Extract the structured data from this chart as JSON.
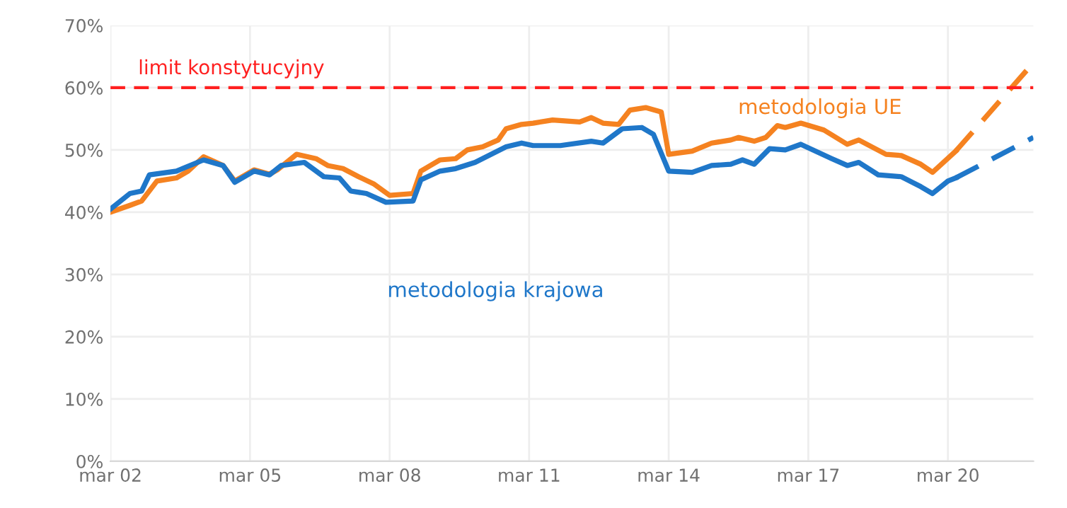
{
  "chart_data": {
    "type": "line",
    "xlim": [
      "2002-03",
      "2022-01"
    ],
    "ylim": [
      0,
      70
    ],
    "xticks": [
      {
        "value": "2002-03",
        "label": "mar 02"
      },
      {
        "value": "2005-03",
        "label": "mar 05"
      },
      {
        "value": "2008-03",
        "label": "mar 08"
      },
      {
        "value": "2011-03",
        "label": "mar 11"
      },
      {
        "value": "2014-03",
        "label": "mar 14"
      },
      {
        "value": "2017-03",
        "label": "mar 17"
      },
      {
        "value": "2020-03",
        "label": "mar 20"
      }
    ],
    "yticks": [
      {
        "value": 0,
        "label": "0%"
      },
      {
        "value": 10,
        "label": "10%"
      },
      {
        "value": 20,
        "label": "20%"
      },
      {
        "value": 30,
        "label": "30%"
      },
      {
        "value": 40,
        "label": "40%"
      },
      {
        "value": 50,
        "label": "50%"
      },
      {
        "value": 60,
        "label": "60%"
      },
      {
        "value": 70,
        "label": "70%"
      }
    ],
    "grid": true,
    "series": [
      {
        "name": "metodologia UE",
        "color": "#f58220",
        "line_style": "solid",
        "x": [
          "2002-03",
          "2002-08",
          "2002-11",
          "2003-03",
          "2003-08",
          "2003-11",
          "2004-03",
          "2004-08",
          "2004-11",
          "2005-04",
          "2005-08",
          "2005-10",
          "2006-03",
          "2006-08",
          "2006-11",
          "2007-03",
          "2007-07",
          "2007-11",
          "2008-03",
          "2008-09",
          "2008-11",
          "2009-04",
          "2009-08",
          "2009-11",
          "2010-03",
          "2010-07",
          "2010-09",
          "2011-01",
          "2011-04",
          "2011-09",
          "2012-04",
          "2012-07",
          "2012-10",
          "2013-02",
          "2013-05",
          "2013-09",
          "2014-01",
          "2014-03",
          "2014-09",
          "2015-02",
          "2015-07",
          "2015-09",
          "2016-01",
          "2016-04",
          "2016-07",
          "2016-09",
          "2017-01",
          "2017-07",
          "2018-01",
          "2018-04",
          "2018-11",
          "2019-03",
          "2019-08",
          "2019-11",
          "2020-05"
        ],
        "values": [
          40,
          41.1,
          41.8,
          45,
          45.5,
          46.6,
          48.9,
          47.5,
          45,
          46.8,
          46.1,
          46.8,
          49.3,
          48.6,
          47.5,
          47,
          45.7,
          44.5,
          42.7,
          43,
          46.6,
          48.4,
          48.6,
          50,
          50.5,
          51.6,
          53.4,
          54.1,
          54.3,
          54.8,
          54.5,
          55.2,
          54.3,
          54.1,
          56.4,
          56.8,
          56.1,
          49.3,
          49.8,
          51.1,
          51.6,
          52,
          51.4,
          52,
          53.9,
          53.6,
          54.3,
          53.2,
          50.9,
          51.6,
          49.3,
          49.1,
          47.7,
          46.4,
          49.8
        ]
      },
      {
        "color": "#f58220",
        "line_style": "dashed",
        "x": [
          "2020-05",
          "2022-01"
        ],
        "values": [
          49.8,
          64
        ]
      },
      {
        "name": "metodologia krajowa",
        "color": "#1f77c9",
        "line_style": "solid",
        "x": [
          "2002-03",
          "2002-08",
          "2002-11",
          "2003-01",
          "2003-08",
          "2004-03",
          "2004-08",
          "2004-11",
          "2005-04",
          "2005-08",
          "2005-11",
          "2006-05",
          "2006-10",
          "2007-02",
          "2007-05",
          "2007-09",
          "2008-02",
          "2008-09",
          "2008-11",
          "2009-04",
          "2009-08",
          "2010-01",
          "2010-09",
          "2011-01",
          "2011-04",
          "2011-11",
          "2012-07",
          "2012-10",
          "2013-03",
          "2013-08",
          "2013-11",
          "2014-03",
          "2014-09",
          "2015-02",
          "2015-07",
          "2015-10",
          "2016-01",
          "2016-05",
          "2016-09",
          "2017-01",
          "2017-09",
          "2018-01",
          "2018-04",
          "2018-09",
          "2019-03",
          "2019-08",
          "2019-11",
          "2020-03",
          "2020-05"
        ],
        "values": [
          40.5,
          43,
          43.4,
          46,
          46.6,
          48.4,
          47.5,
          44.8,
          46.6,
          46,
          47.5,
          48,
          45.7,
          45.5,
          43.4,
          43,
          41.6,
          41.8,
          45.2,
          46.6,
          47,
          48,
          50.5,
          51.1,
          50.7,
          50.7,
          51.4,
          51.1,
          53.4,
          53.6,
          52.5,
          46.6,
          46.4,
          47.5,
          47.7,
          48.4,
          47.7,
          50.2,
          50,
          50.9,
          48.6,
          47.5,
          48,
          46,
          45.7,
          44.1,
          43,
          45,
          45.5
        ]
      },
      {
        "color": "#1f77c9",
        "line_style": "dashed",
        "x": [
          "2020-05",
          "2022-01"
        ],
        "values": [
          45.5,
          52
        ]
      }
    ],
    "ref_lines": [
      {
        "axis": "y",
        "value": 60,
        "label": "limit konstytucyjny",
        "color": "#ff2020",
        "line_style": "dashed"
      }
    ]
  }
}
